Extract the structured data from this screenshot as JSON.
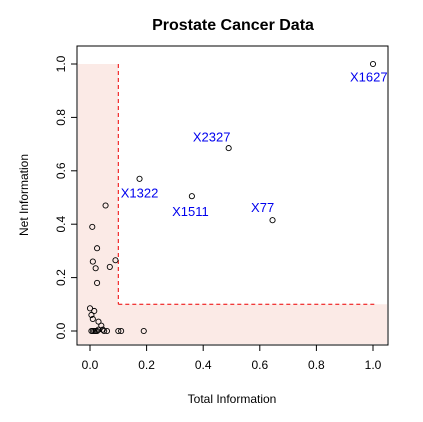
{
  "chart_data": {
    "type": "scatter",
    "title": "Prostate Cancer Data",
    "xlabel": "Total Information",
    "ylabel": "Net Information",
    "xlim": [
      0,
      1.0
    ],
    "ylim": [
      0,
      1.0
    ],
    "xticks": [
      "0.0",
      "0.2",
      "0.4",
      "0.6",
      "0.8",
      "1.0"
    ],
    "yticks": [
      "0.0",
      "0.2",
      "0.4",
      "0.6",
      "0.8",
      "1.0"
    ],
    "threshold": 0.1,
    "colors": {
      "region_fill": "#fbeae6",
      "threshold_line": "#ee0000",
      "annotation": "#0000ee",
      "points": "#000000"
    },
    "points": [
      [
        0.0,
        0.085
      ],
      [
        0.005,
        0.06
      ],
      [
        0.01,
        0.045
      ],
      [
        0.015,
        0.075
      ],
      [
        0.005,
        0.0
      ],
      [
        0.01,
        0.0
      ],
      [
        0.015,
        0.0
      ],
      [
        0.02,
        0.0
      ],
      [
        0.025,
        0.0
      ],
      [
        0.03,
        0.005
      ],
      [
        0.03,
        0.035
      ],
      [
        0.04,
        0.02
      ],
      [
        0.045,
        0.005
      ],
      [
        0.05,
        0.0
      ],
      [
        0.06,
        0.0
      ],
      [
        0.1,
        0.0
      ],
      [
        0.11,
        0.0
      ],
      [
        0.19,
        0.0
      ],
      [
        0.01,
        0.26
      ],
      [
        0.02,
        0.235
      ],
      [
        0.025,
        0.18
      ],
      [
        0.025,
        0.31
      ],
      [
        0.008,
        0.39
      ],
      [
        0.055,
        0.47
      ],
      [
        0.07,
        0.24
      ],
      [
        0.09,
        0.265
      ],
      [
        0.175,
        0.57
      ],
      [
        0.36,
        0.505
      ],
      [
        0.49,
        0.685
      ],
      [
        0.645,
        0.415
      ],
      [
        1.0,
        1.0
      ]
    ],
    "annotations": [
      {
        "label": "X1627",
        "x": 0.985,
        "y": 0.95
      },
      {
        "label": "X2327",
        "x": 0.43,
        "y": 0.725
      },
      {
        "label": "X1322",
        "x": 0.175,
        "y": 0.515
      },
      {
        "label": "X1511",
        "x": 0.355,
        "y": 0.445
      },
      {
        "label": "X77",
        "x": 0.61,
        "y": 0.46
      }
    ]
  }
}
